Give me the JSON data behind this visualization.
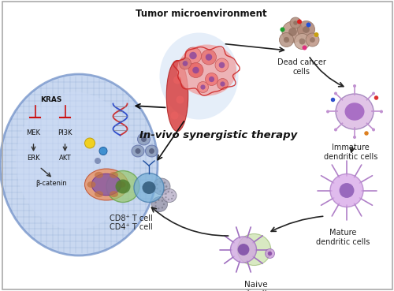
{
  "title": "Tumor microenvironment",
  "center_label": "In-vivo synergistic therapy",
  "bg_color": "#ffffff",
  "cell_labels": {
    "dead_cancer": "Dead cancer\ncells",
    "immature_dc": "Immature\ndendritic cells",
    "mature_dc": "Mature\ndendritic cells",
    "naive_t": "Naive\nT cell",
    "cd8_cd4": "CD8⁺ T cell\nCD4⁺ T cell"
  },
  "figsize": [
    5.0,
    3.69
  ],
  "dpi": 100,
  "xlim": [
    0,
    10
  ],
  "ylim": [
    0,
    7.38
  ]
}
